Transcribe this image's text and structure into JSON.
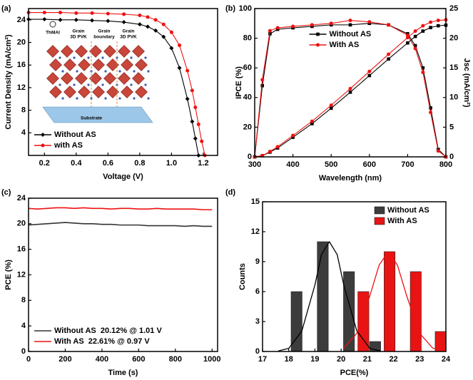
{
  "chart_data": [
    {
      "type": "line",
      "panel_label": "(a)",
      "x_label": "Voltage (V)",
      "y_label": "Current Density (mA/cm²)",
      "xlim": [
        0.1,
        1.29
      ],
      "xticks": [
        0.2,
        0.4,
        0.6,
        0.8,
        {
          "value": 1,
          "label": "1.0"
        },
        1.2
      ],
      "ylim": [
        0,
        26
      ],
      "yticks": [
        4,
        8,
        12,
        16,
        20,
        24
      ],
      "legend": "lower left",
      "x": [
        0.1,
        0.2,
        0.3,
        0.4,
        0.5,
        0.6,
        0.7,
        0.8,
        0.85,
        0.9,
        0.95,
        1.0,
        1.05,
        1.1,
        1.13,
        1.15,
        1.17,
        1.19,
        1.21
      ],
      "series": [
        {
          "name": "Without AS",
          "color": "#000000",
          "marker": "diamond",
          "values": [
            24.1,
            24.1,
            24.0,
            24.0,
            23.9,
            23.8,
            23.6,
            23.2,
            22.8,
            22.1,
            21.0,
            19.0,
            15.5,
            10.0,
            6.0,
            3.0,
            0,
            null,
            null
          ]
        },
        {
          "name": "with AS",
          "color": "#ee1111",
          "marker": "circle",
          "values": [
            25.3,
            25.3,
            25.3,
            25.2,
            25.2,
            25.1,
            25.0,
            24.8,
            24.5,
            24.0,
            23.2,
            21.8,
            19.5,
            15.0,
            11.5,
            8.5,
            5.5,
            2.5,
            0
          ]
        }
      ],
      "inset_labels": [
        "ThMAI",
        "Grain",
        "3D PVK",
        "Grain",
        "boundary",
        "Grain",
        "3D PVK",
        "Substrate"
      ]
    },
    {
      "type": "line",
      "panel_label": "(b)",
      "x_label": "Wavelength (nm)",
      "y_label": "IPCE (%)",
      "y2_label": "Jsc (mA/cm²)",
      "xlim": [
        300,
        800
      ],
      "xticks": [
        300,
        400,
        500,
        600,
        700,
        800
      ],
      "ylim": [
        0,
        100
      ],
      "yticks": [
        0,
        20,
        40,
        60,
        80,
        100
      ],
      "y2lim": [
        0,
        25
      ],
      "y2ticks": [
        0,
        5,
        10,
        15,
        20,
        25
      ],
      "legend": "upper center",
      "x": [
        300,
        320,
        340,
        360,
        400,
        450,
        500,
        550,
        600,
        650,
        700,
        720,
        740,
        760,
        780,
        800
      ],
      "series": [
        {
          "name": "Without AS",
          "color": "#000000",
          "marker": "square",
          "values": [
            0,
            48,
            83,
            86,
            87,
            88,
            89,
            89,
            90,
            89,
            83,
            75,
            60,
            33,
            5,
            0
          ]
        },
        {
          "name": "With AS",
          "color": "#ee1111",
          "marker": "circle",
          "values": [
            0,
            52,
            85,
            87,
            88,
            89,
            90,
            92,
            91,
            89,
            82,
            73,
            57,
            30,
            4,
            0
          ]
        },
        {
          "axis": "y2",
          "color": "#000000",
          "marker": "square",
          "values": [
            0,
            0.2,
            0.8,
            1.5,
            3.3,
            5.6,
            8.2,
            10.9,
            13.7,
            16.5,
            19.2,
            20.3,
            21.2,
            21.8,
            22.1,
            22.2
          ]
        },
        {
          "axis": "y2",
          "color": "#ee1111",
          "marker": "circle",
          "values": [
            0,
            0.2,
            0.9,
            1.7,
            3.6,
            6.0,
            8.7,
            11.5,
            14.4,
            17.3,
            20.1,
            21.2,
            22.1,
            22.7,
            23.0,
            23.1
          ]
        }
      ]
    },
    {
      "type": "line",
      "panel_label": "(c)",
      "x_label": "Time (s)",
      "y_label": "PCE (%)",
      "xlim": [
        0,
        1030
      ],
      "xticks": [
        0,
        200,
        400,
        600,
        800,
        1000
      ],
      "ylim": [
        0,
        24
      ],
      "yticks": [
        0,
        4,
        8,
        12,
        16,
        20,
        24
      ],
      "legend": "lower left",
      "x": [
        0,
        50,
        100,
        150,
        200,
        250,
        300,
        350,
        400,
        450,
        500,
        550,
        600,
        650,
        700,
        750,
        800,
        850,
        900,
        950,
        1000
      ],
      "series": [
        {
          "name": "Without AS  20.12% @ 1.01 V",
          "color": "#333333",
          "values": [
            19.8,
            19.9,
            20.0,
            20.1,
            20.2,
            20.1,
            20.0,
            20.0,
            19.9,
            19.9,
            19.8,
            19.8,
            19.8,
            19.7,
            19.7,
            19.7,
            19.7,
            19.6,
            19.7,
            19.6,
            19.6
          ]
        },
        {
          "name": "With AS  22.61% @ 0.97 V",
          "color": "#ee1111",
          "values": [
            22.4,
            22.3,
            22.4,
            22.5,
            22.5,
            22.4,
            22.5,
            22.4,
            22.4,
            22.3,
            22.4,
            22.4,
            22.3,
            22.3,
            22.4,
            22.3,
            22.3,
            22.3,
            22.3,
            22.2,
            22.2
          ]
        }
      ]
    },
    {
      "type": "bar",
      "panel_label": "(d)",
      "x_label": "PCE(%)",
      "y_label": "Counts",
      "xlim": [
        17,
        24
      ],
      "xticks": [
        17,
        18,
        19,
        20,
        21,
        22,
        23,
        24
      ],
      "ylim": [
        0,
        15
      ],
      "yticks": [
        0,
        3,
        6,
        9,
        12,
        15
      ],
      "legend": "upper right",
      "series": [
        {
          "name": "Without AS",
          "color": "#3c3c3c",
          "x": [
            18.3,
            19.3,
            20.3,
            21.3
          ],
          "values": [
            6,
            11,
            8,
            1
          ],
          "fit": {
            "color": "#000000",
            "x": [
              17.6,
              18.0,
              18.5,
              19.0,
              19.25,
              19.55,
              19.85,
              20.1,
              20.6,
              21.1,
              21.5
            ],
            "values": [
              0.05,
              0.31,
              2.05,
              6.67,
              9.71,
              11,
              9.71,
              6.67,
              2.05,
              0.31,
              0.05
            ]
          }
        },
        {
          "name": "With AS",
          "color": "#e81414",
          "x": [
            20.85,
            21.85,
            22.85,
            23.8
          ],
          "values": [
            6,
            10,
            8,
            2
          ],
          "fit": {
            "color": "#ee1111",
            "x": [
              20.1,
              20.6,
              21.1,
              21.45,
              21.8,
              22.15,
              22.5,
              23.0,
              23.5,
              24.0
            ],
            "values": [
              0.33,
              1.82,
              5.6,
              8.65,
              10,
              8.65,
              5.6,
              1.82,
              0.33,
              0.03
            ]
          }
        }
      ]
    }
  ]
}
